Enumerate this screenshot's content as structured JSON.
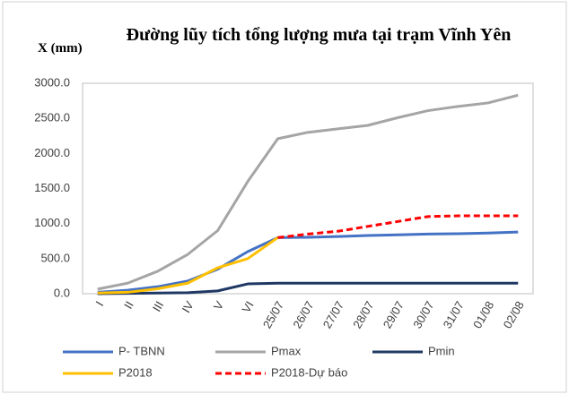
{
  "chart_data": {
    "type": "line",
    "title": "Đường lũy tích tổng lượng mưa tại trạm Vĩnh Yên",
    "y_label": "X (mm)",
    "categories": [
      "I",
      "II",
      "III",
      "IV",
      "V",
      "VI",
      "25/07",
      "26/07",
      "27/07",
      "28/07",
      "29/07",
      "30/07",
      "31/07",
      "01/08",
      "02/08"
    ],
    "series": [
      {
        "name": "P- TBNN",
        "color": "#4472c4",
        "dash": false,
        "values": [
          20,
          50,
          100,
          180,
          350,
          600,
          800,
          805,
          815,
          830,
          840,
          850,
          855,
          865,
          880
        ]
      },
      {
        "name": "Pmax",
        "color": "#a5a5a5",
        "dash": false,
        "values": [
          65,
          150,
          320,
          560,
          900,
          1600,
          2210,
          2300,
          2350,
          2400,
          2510,
          2610,
          2670,
          2720,
          2830
        ]
      },
      {
        "name": "Pmin",
        "color": "#1f3864",
        "dash": false,
        "values": [
          0,
          5,
          10,
          15,
          40,
          140,
          150,
          150,
          150,
          150,
          150,
          150,
          150,
          150,
          150
        ]
      },
      {
        "name": "P2018",
        "color": "#ffc000",
        "dash": false,
        "values": [
          10,
          20,
          70,
          150,
          370,
          500,
          800,
          null,
          null,
          null,
          null,
          null,
          null,
          null,
          null
        ]
      },
      {
        "name": "P2018-Dự báo",
        "color": "#ff0000",
        "dash": true,
        "values": [
          null,
          null,
          null,
          null,
          null,
          null,
          800,
          850,
          890,
          960,
          1030,
          1100,
          1110,
          1110,
          1110
        ]
      }
    ],
    "ylim": [
      0,
      3000
    ],
    "yticks": [
      {
        "value": 0,
        "label": "0.0"
      },
      {
        "value": 500,
        "label": "500.0"
      },
      {
        "value": 1000,
        "label": "1000.0"
      },
      {
        "value": 1500,
        "label": "1500.0"
      },
      {
        "value": 2000,
        "label": "2000.0"
      },
      {
        "value": 2500,
        "label": "2500.0"
      },
      {
        "value": 3000,
        "label": "3000.0"
      }
    ],
    "grid": false,
    "legend": "bottom"
  }
}
